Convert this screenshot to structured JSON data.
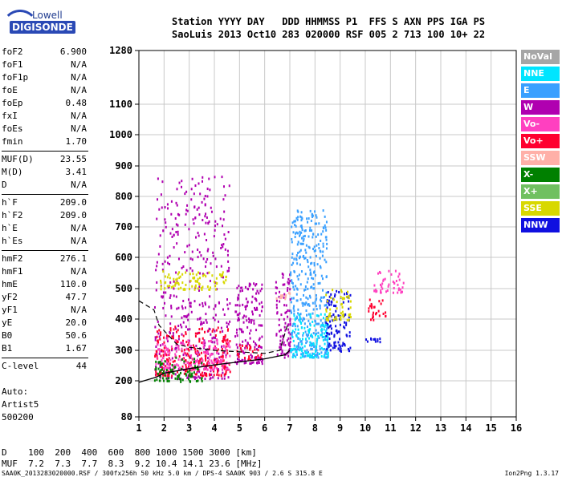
{
  "logo": {
    "line1": "Lowell",
    "line2": "DIGISONDE"
  },
  "header": {
    "line1": "Station YYYY DAY   DDD HHMMSS P1  FFS S AXN PPS IGA PS",
    "line2": "SaoLuis 2013 Oct10 283 020000 RSF 005 2 713 100 10+ 22"
  },
  "params": [
    {
      "label": "foF2",
      "value": "6.900"
    },
    {
      "label": "foF1",
      "value": "N/A"
    },
    {
      "label": "foF1p",
      "value": "N/A"
    },
    {
      "label": "foE",
      "value": "N/A"
    },
    {
      "label": "foEp",
      "value": "0.48"
    },
    {
      "label": "fxI",
      "value": "N/A"
    },
    {
      "label": "foEs",
      "value": "N/A"
    },
    {
      "label": "fmin",
      "value": "1.70"
    },
    {
      "label": "MUF(D)",
      "value": "23.55"
    },
    {
      "label": "M(D)",
      "value": "3.41"
    },
    {
      "label": "D",
      "value": "N/A"
    },
    {
      "label": "h`F",
      "value": "209.0"
    },
    {
      "label": "h`F2",
      "value": "209.0"
    },
    {
      "label": "h`E",
      "value": "N/A"
    },
    {
      "label": "h`Es",
      "value": "N/A"
    },
    {
      "label": "hmF2",
      "value": "276.1"
    },
    {
      "label": "hmF1",
      "value": "N/A"
    },
    {
      "label": "hmE",
      "value": "110.0"
    },
    {
      "label": "yF2",
      "value": "47.7"
    },
    {
      "label": "yF1",
      "value": "N/A"
    },
    {
      "label": "yE",
      "value": "20.0"
    },
    {
      "label": "B0",
      "value": "50.6"
    },
    {
      "label": "B1",
      "value": "1.67"
    },
    {
      "label": "C-level",
      "value": "44"
    }
  ],
  "auto": {
    "line1": "Auto:",
    "line2": "Artist5",
    "line3": "500200"
  },
  "legend": [
    {
      "label": "NoVal",
      "color": "#a6a6a6"
    },
    {
      "label": "NNE",
      "color": "#00e5ff"
    },
    {
      "label": "E",
      "color": "#3aa0ff"
    },
    {
      "label": "W",
      "color": "#b000b0"
    },
    {
      "label": "Vo-",
      "color": "#ff40c0"
    },
    {
      "label": "Vo+",
      "color": "#ff0030"
    },
    {
      "label": "SSW",
      "color": "#ffb0a8"
    },
    {
      "label": "X-",
      "color": "#008000"
    },
    {
      "label": "X+",
      "color": "#70c060"
    },
    {
      "label": "SSE",
      "color": "#d8d800"
    },
    {
      "label": "NNW",
      "color": "#1010e0"
    }
  ],
  "chart_data": {
    "type": "scatter",
    "xlim": [
      1,
      16
    ],
    "ylim": [
      80,
      1280
    ],
    "x_ticks": [
      "1",
      "2",
      "3",
      "4",
      "5",
      "6",
      "7",
      "8",
      "9",
      "10",
      "11",
      "12",
      "13",
      "14",
      "15",
      "16"
    ],
    "y_ticks": [
      "80",
      "200",
      "300",
      "400",
      "500",
      "600",
      "700",
      "800",
      "900",
      "1000",
      "1100",
      "1280"
    ],
    "grid": true,
    "echo_regions": [
      {
        "fmin": 1.6,
        "fmax": 4.6,
        "hmin": 210,
        "hmax": 870,
        "color": "#b000b0"
      },
      {
        "fmin": 1.6,
        "fmax": 4.6,
        "hmin": 220,
        "hmax": 380,
        "color": "#ff0030"
      },
      {
        "fmin": 1.6,
        "fmax": 4.6,
        "hmin": 240,
        "hmax": 340,
        "color": "#ff40c0"
      },
      {
        "fmin": 1.8,
        "fmax": 4.5,
        "hmin": 500,
        "hmax": 560,
        "color": "#d8d800"
      },
      {
        "fmin": 1.6,
        "fmax": 3.5,
        "hmin": 200,
        "hmax": 280,
        "color": "#008000"
      },
      {
        "fmin": 4.8,
        "fmax": 5.9,
        "hmin": 260,
        "hmax": 520,
        "color": "#b000b0"
      },
      {
        "fmin": 4.8,
        "fmax": 5.9,
        "hmin": 270,
        "hmax": 320,
        "color": "#ff0030"
      },
      {
        "fmin": 6.4,
        "fmax": 7.0,
        "hmin": 280,
        "hmax": 560,
        "color": "#b000b0"
      },
      {
        "fmin": 6.4,
        "fmax": 7.0,
        "hmin": 470,
        "hmax": 490,
        "color": "#ffb0a8"
      },
      {
        "fmin": 7.0,
        "fmax": 8.5,
        "hmin": 280,
        "hmax": 760,
        "color": "#3aa0ff"
      },
      {
        "fmin": 7.0,
        "fmax": 8.5,
        "hmin": 280,
        "hmax": 420,
        "color": "#00e5ff"
      },
      {
        "fmin": 8.4,
        "fmax": 9.4,
        "hmin": 300,
        "hmax": 500,
        "color": "#1010e0"
      },
      {
        "fmin": 8.4,
        "fmax": 9.4,
        "hmin": 400,
        "hmax": 500,
        "color": "#d8d800"
      },
      {
        "fmin": 10.0,
        "fmax": 10.6,
        "hmin": 330,
        "hmax": 345,
        "color": "#1010e0"
      },
      {
        "fmin": 10.1,
        "fmax": 10.8,
        "hmin": 400,
        "hmax": 470,
        "color": "#ff0030"
      },
      {
        "fmin": 10.3,
        "fmax": 11.5,
        "hmin": 490,
        "hmax": 560,
        "color": "#ff40c0"
      }
    ],
    "trace_solid": {
      "x": [
        1.0,
        1.7,
        2.0,
        3.0,
        4.0,
        5.0,
        6.0,
        6.8,
        7.0
      ],
      "y": [
        195,
        212,
        225,
        240,
        252,
        262,
        272,
        285,
        300
      ]
    },
    "trace_dashed": {
      "x": [
        1.0,
        1.6,
        1.8,
        2.5,
        3.0,
        4.0,
        5.0,
        6.0,
        6.6,
        6.9
      ],
      "y": [
        460,
        430,
        380,
        320,
        310,
        300,
        295,
        290,
        300,
        380
      ]
    }
  },
  "footer": {
    "line1": "D    100  200  400  600  800 1000 1500 3000 [km]",
    "line2": "MUF  7.2  7.3  7.7  8.3  9.2 10.4 14.1 23.6 [MHz]",
    "line3": "SAA0K_2013283020000.RSF / 300fx256h 50 kHz 5.0 km / DPS-4 SAA0K 903 / 2.6 S 315.8 E",
    "right": "Ion2Png 1.3.17"
  }
}
